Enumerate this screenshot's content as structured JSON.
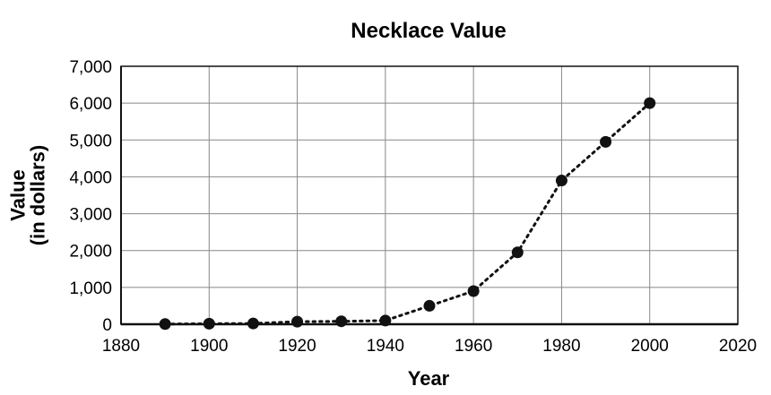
{
  "chart_data": {
    "type": "line",
    "title": "Necklace Value",
    "xlabel": "Year",
    "ylabel_line1": "Value",
    "ylabel_line2": "(in dollars)",
    "xlim": [
      1880,
      2020
    ],
    "ylim": [
      0,
      7000
    ],
    "x_ticks": [
      1880,
      1900,
      1920,
      1940,
      1960,
      1980,
      2000,
      2020
    ],
    "y_ticks": [
      0,
      1000,
      2000,
      3000,
      4000,
      5000,
      6000,
      7000
    ],
    "x_tick_labels": [
      "1880",
      "1900",
      "1920",
      "1940",
      "1960",
      "1980",
      "2000",
      "2020"
    ],
    "y_tick_labels": [
      "0",
      "1,000",
      "2,000",
      "3,000",
      "4,000",
      "5,000",
      "6,000",
      "7,000"
    ],
    "grid": true,
    "line_style": "dotted",
    "series": [
      {
        "x": [
          1890,
          1900,
          1910,
          1920,
          1930,
          1940,
          1950,
          1960,
          1970,
          1980,
          1990,
          2000
        ],
        "y": [
          5,
          15,
          20,
          70,
          80,
          100,
          500,
          900,
          1950,
          3900,
          4950,
          6000
        ]
      }
    ],
    "colors": {
      "line": "#111111",
      "marker": "#111111",
      "grid": "#888888",
      "axis": "#111111"
    }
  }
}
